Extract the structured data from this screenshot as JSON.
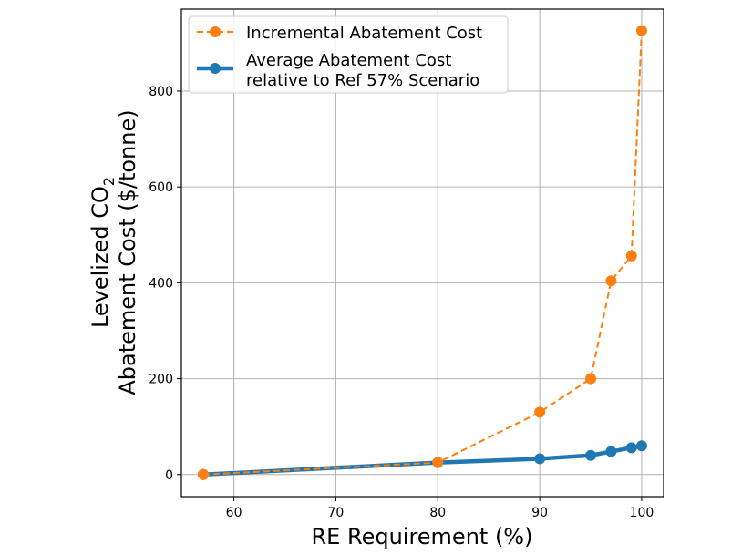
{
  "chart_data": {
    "type": "line",
    "title": "",
    "xlabel": "RE Requirement (%)",
    "ylabel_line1": "Levelized CO",
    "ylabel_sub": "2",
    "ylabel_line2": "Abatement Cost ($/tonne)",
    "xlim": [
      54.85,
      102.15
    ],
    "ylim": [
      -46,
      971
    ],
    "xticks": [
      60,
      70,
      80,
      90,
      100
    ],
    "yticks": [
      0,
      200,
      400,
      600,
      800
    ],
    "grid": true,
    "legend_position": "top-left",
    "series": [
      {
        "name": "Incremental Abatement Cost",
        "color": "#ff7f0e",
        "style": "dashed",
        "x": [
          57,
          80,
          90,
          95,
          97,
          99,
          100
        ],
        "y": [
          0,
          25,
          130,
          200,
          404,
          456,
          926
        ]
      },
      {
        "name": "Average Abatement Cost relative to Ref 57% Scenario",
        "name_line1": "Average Abatement Cost",
        "name_line2": "relative to Ref 57% Scenario",
        "color": "#1f77b4",
        "style": "solid",
        "x": [
          57,
          80,
          90,
          95,
          97,
          99,
          100
        ],
        "y": [
          0,
          25,
          33,
          40,
          48,
          56,
          60
        ]
      }
    ]
  }
}
